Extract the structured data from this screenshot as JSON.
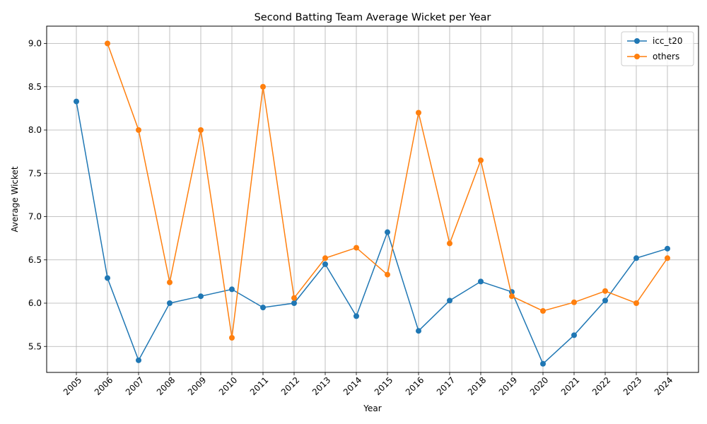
{
  "chart_data": {
    "type": "line",
    "title": "Second Batting Team Average Wicket per Year",
    "xlabel": "Year",
    "ylabel": "Average Wicket",
    "x": [
      "2005",
      "2006",
      "2007",
      "2008",
      "2009",
      "2010",
      "2011",
      "2012",
      "2013",
      "2014",
      "2015",
      "2016",
      "2017",
      "2018",
      "2019",
      "2020",
      "2021",
      "2022",
      "2023",
      "2024"
    ],
    "ylim": [
      5.2,
      9.2
    ],
    "yticks": [
      "5.5",
      "6.0",
      "6.5",
      "7.0",
      "7.5",
      "8.0",
      "8.5",
      "9.0"
    ],
    "grid": true,
    "legend_position": "top-right",
    "series": [
      {
        "name": "icc_t20",
        "color": "#1f77b4",
        "values": [
          8.33,
          6.29,
          5.34,
          6.0,
          6.08,
          6.16,
          5.95,
          6.0,
          6.45,
          5.85,
          6.82,
          5.68,
          6.03,
          6.25,
          6.13,
          5.3,
          5.63,
          6.03,
          6.52,
          6.63
        ]
      },
      {
        "name": "others",
        "color": "#ff7f0e",
        "values": [
          null,
          9.0,
          8.0,
          6.24,
          8.0,
          5.6,
          8.5,
          6.06,
          6.52,
          6.64,
          6.33,
          8.2,
          6.69,
          7.65,
          6.08,
          5.91,
          6.01,
          6.14,
          6.0,
          6.52
        ]
      }
    ]
  }
}
